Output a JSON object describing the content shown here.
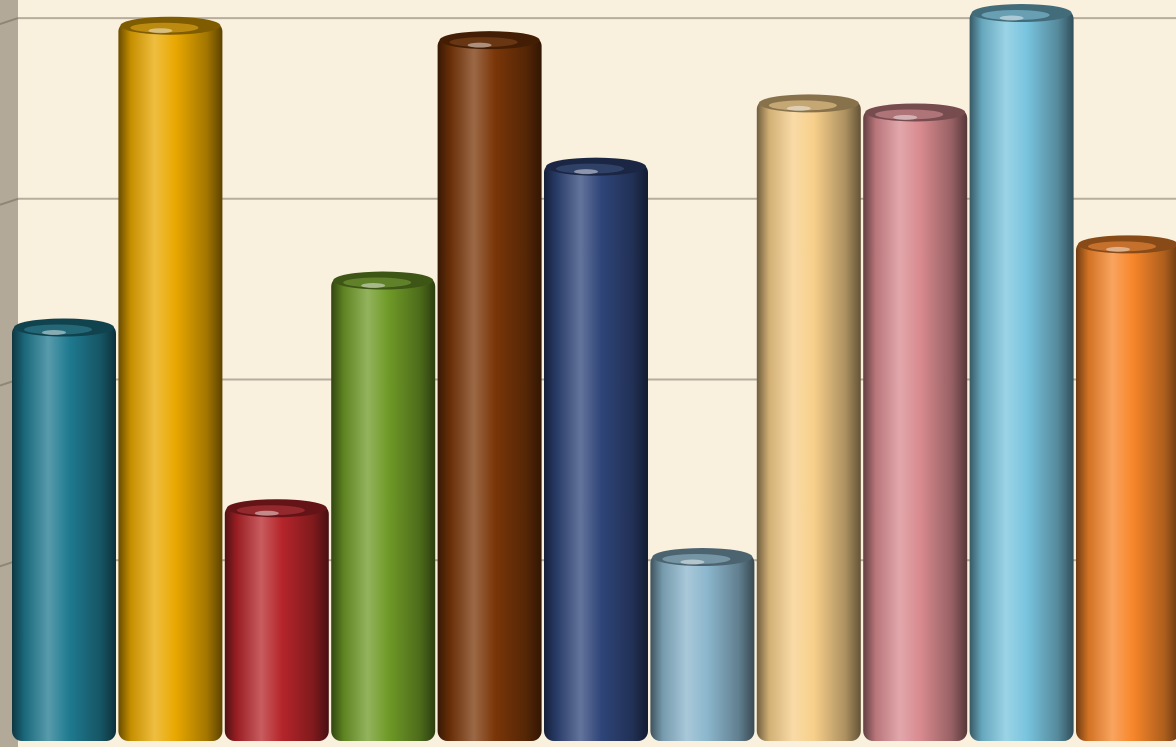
{
  "chart_data": {
    "type": "bar",
    "style": "3d-cylinder",
    "title": "",
    "xlabel": "",
    "ylabel": "",
    "grid": true,
    "legend": "none",
    "ylim": [
      0,
      4.1
    ],
    "values": [
      2.31,
      3.98,
      1.31,
      2.57,
      3.9,
      3.2,
      1.04,
      3.55,
      3.5,
      4.05,
      2.77
    ],
    "colors": [
      "#1f7a90",
      "#e9a800",
      "#b5252a",
      "#6f9a27",
      "#7a3608",
      "#2f4579",
      "#8bb6cc",
      "#f7cf8a",
      "#d88a8f",
      "#79c4de",
      "#f7862a"
    ],
    "background": "#f7ecd6"
  }
}
